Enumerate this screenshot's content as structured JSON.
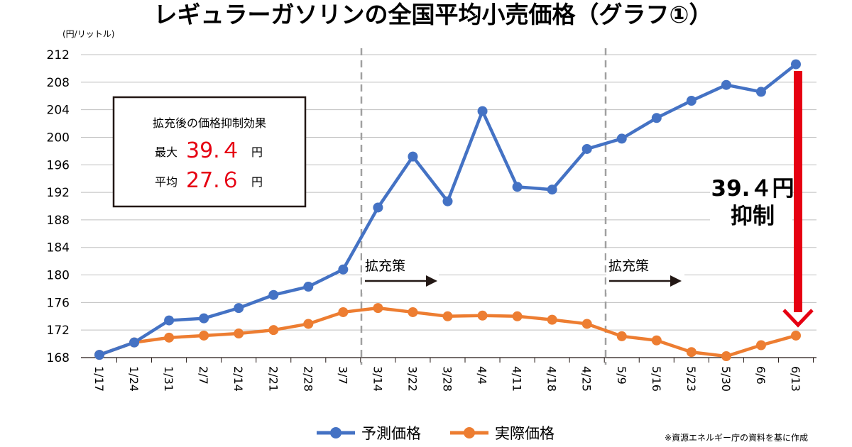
{
  "chart_data": {
    "type": "line",
    "title": "レギュラーガソリンの全国平均小売価格（グラフ①）",
    "unit_label": "(円/リットル)",
    "categories": [
      "1/17",
      "1/24",
      "1/31",
      "2/7",
      "2/14",
      "2/21",
      "2/28",
      "3/7",
      "3/14",
      "3/22",
      "3/28",
      "4/4",
      "4/11",
      "4/18",
      "4/25",
      "5/9",
      "5/16",
      "5/23",
      "5/30",
      "6/6",
      "6/13"
    ],
    "y_ticks": [
      "212",
      "208",
      "204",
      "200",
      "196",
      "192",
      "188",
      "184",
      "180",
      "176",
      "172",
      "168"
    ],
    "ylim": [
      168,
      212
    ],
    "grid": true,
    "legend_position": "bottom",
    "series": [
      {
        "name": "予測価格",
        "color": "#4472c4",
        "values": [
          168.4,
          170.2,
          173.4,
          173.7,
          175.2,
          177.1,
          178.3,
          180.8,
          189.8,
          197.2,
          190.7,
          203.8,
          192.8,
          192.4,
          198.3,
          199.8,
          202.8,
          205.3,
          207.6,
          206.6,
          210.6
        ]
      },
      {
        "name": "実際価格",
        "color": "#ed7d31",
        "values": [
          168.4,
          170.2,
          170.9,
          171.2,
          171.5,
          172.0,
          172.9,
          174.6,
          175.2,
          174.6,
          174.0,
          174.1,
          174.0,
          173.5,
          172.9,
          171.1,
          170.5,
          168.8,
          168.2,
          169.8,
          171.2
        ]
      }
    ],
    "annotations": {
      "box_title": "拡充後の価格抑制効果",
      "box_max_label": "最大",
      "box_max_value": "39.４",
      "box_avg_label": "平均",
      "box_avg_value": "27.６",
      "yen": "円",
      "strategy_label_1": "拡充策",
      "strategy_label_2": "拡充策",
      "arrow_label_line1": "39.４円",
      "arrow_label_line2": "抑制"
    },
    "source_note": "※資源エネルギー庁の資料を基に作成"
  }
}
